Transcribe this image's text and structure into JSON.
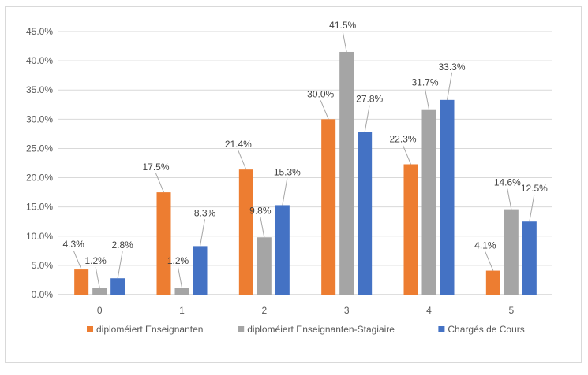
{
  "chart_data": {
    "type": "bar",
    "title": "",
    "xlabel": "",
    "ylabel": "",
    "categories": [
      "0",
      "1",
      "2",
      "3",
      "4",
      "5"
    ],
    "ylim": [
      0,
      45
    ],
    "yticks": [
      "0.0%",
      "5.0%",
      "10.0%",
      "15.0%",
      "20.0%",
      "25.0%",
      "30.0%",
      "35.0%",
      "40.0%",
      "45.0%"
    ],
    "grid": true,
    "legend_position": "bottom",
    "series": [
      {
        "name": "diploméiert Enseignanten",
        "color": "#ed7d31",
        "values": [
          4.3,
          17.5,
          21.4,
          30.0,
          22.3,
          4.1
        ],
        "labels": [
          "4.3%",
          "17.5%",
          "21.4%",
          "30.0%",
          "22.3%",
          "4.1%"
        ]
      },
      {
        "name": "diploméiert Enseignanten-Stagiaire",
        "color": "#a5a5a5",
        "values": [
          1.2,
          1.2,
          9.8,
          41.5,
          31.7,
          14.6
        ],
        "labels": [
          "1.2%",
          "1.2%",
          "9.8%",
          "41.5%",
          "31.7%",
          "14.6%"
        ]
      },
      {
        "name": "Chargés de Cours",
        "color": "#4472c4",
        "values": [
          2.8,
          8.3,
          15.3,
          27.8,
          33.3,
          12.5
        ],
        "labels": [
          "2.8%",
          "8.3%",
          "15.3%",
          "27.8%",
          "33.3%",
          "12.5%"
        ]
      }
    ]
  }
}
